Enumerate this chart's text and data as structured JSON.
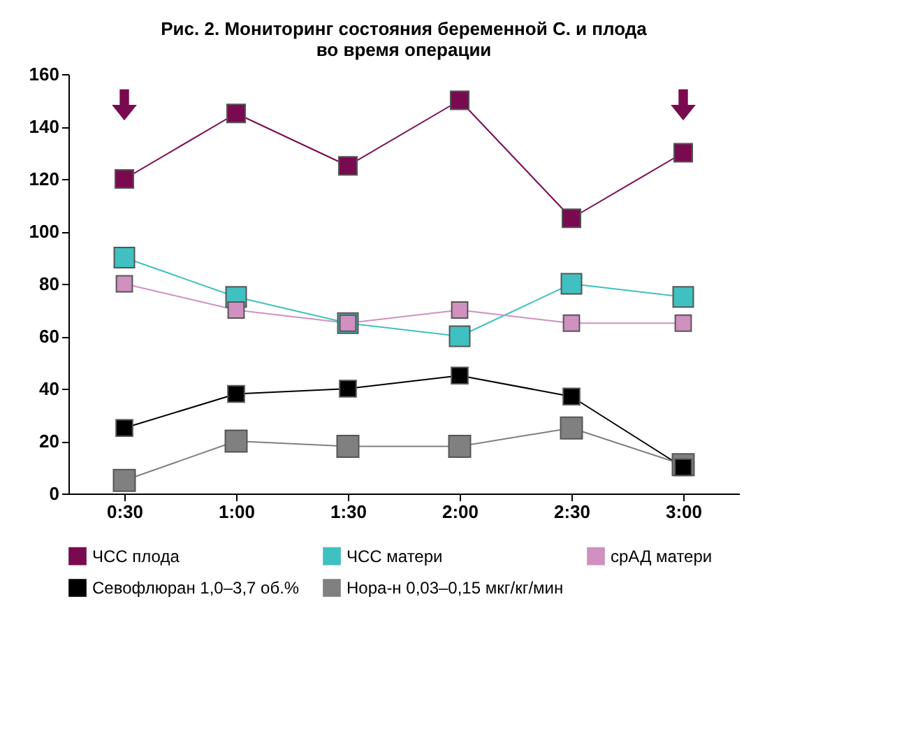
{
  "chart_data": {
    "type": "line",
    "title": [
      "Рис. 2. Мониторинг состояния беременной С. и плода",
      "во время операции"
    ],
    "categories": [
      "0:30",
      "1:00",
      "1:30",
      "2:00",
      "2:30",
      "3:00"
    ],
    "series": [
      {
        "name": "ЧСС плода",
        "color": "#7a0a50",
        "values": [
          120,
          145,
          125,
          150,
          105,
          130
        ]
      },
      {
        "name": "ЧСС матери",
        "color": "#40c0c0",
        "values": [
          90,
          75,
          65,
          60,
          80,
          75
        ]
      },
      {
        "name": "срАД матери",
        "color": "#d090c0",
        "values": [
          80,
          70,
          65,
          70,
          65,
          65
        ]
      },
      {
        "name": "Севофлюран 1,0–3,7 об.%",
        "color": "#000000",
        "values": [
          25,
          38,
          40,
          45,
          37,
          10
        ]
      },
      {
        "name": "Нора-н 0,03–0,15 мкг/кг/мин",
        "color": "#808080",
        "values": [
          5,
          20,
          18,
          18,
          25,
          11
        ]
      }
    ],
    "ylim": [
      0,
      160
    ],
    "yticks": [
      0,
      20,
      40,
      60,
      80,
      100,
      120,
      140,
      160
    ],
    "grid": false,
    "legend": "bottom",
    "marker": "square",
    "line_style": "solid"
  }
}
